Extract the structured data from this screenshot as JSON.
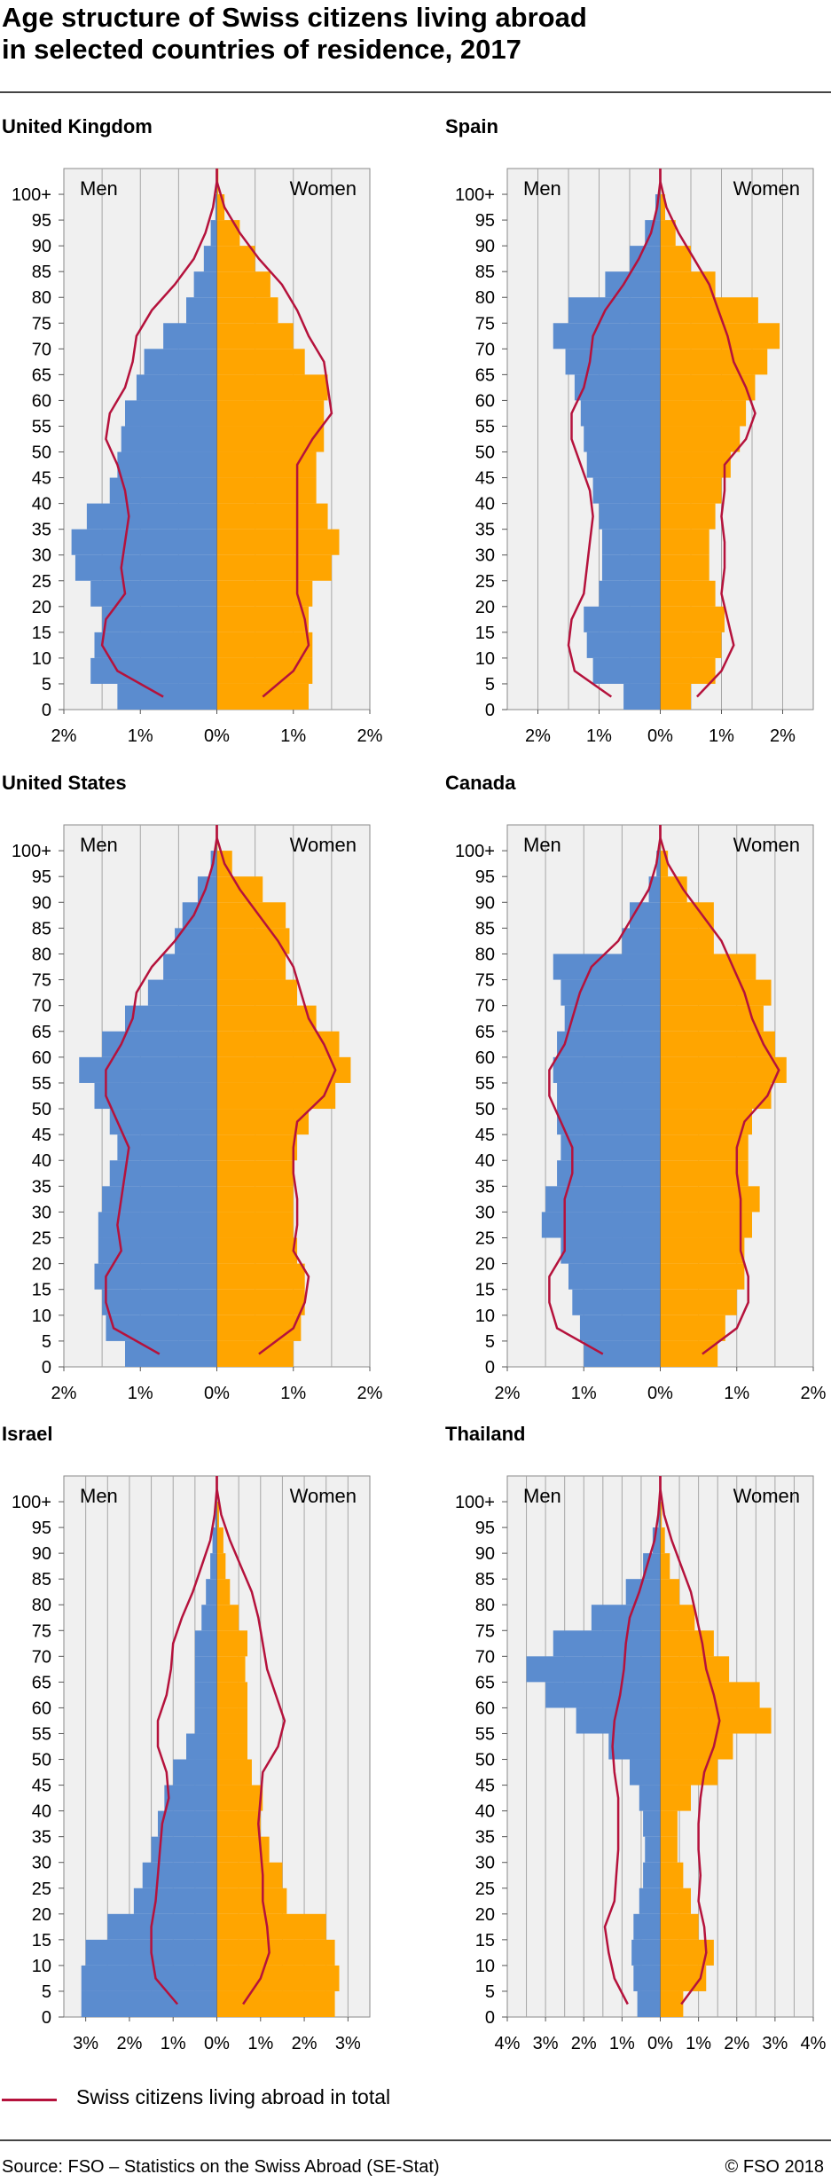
{
  "title_line1": "Age structure of Swiss citizens living abroad",
  "title_line2": "in selected countries of residence, 2017",
  "men_label": "Men",
  "women_label": "Women",
  "legend_label": "Swiss citizens living abroad in total",
  "source": "Source: FSO – Statistics on the Swiss Abroad (SE-Stat)",
  "copyright": "© FSO 2018",
  "colors": {
    "men": "#5b8ccf",
    "women": "#ffa500",
    "total_line": "#b5123c",
    "plot_bg": "#f0f0f0",
    "grid": "#a6a6a6"
  },
  "chart_data": [
    {
      "type": "bar",
      "title": "United Kingdom",
      "xmax": 2,
      "xticks": [
        -2,
        -1,
        0,
        1,
        2
      ],
      "xtick_labels": [
        "2%",
        "1%",
        "0%",
        "1%",
        "2%"
      ],
      "age_groups": [
        0,
        5,
        10,
        15,
        20,
        25,
        30,
        35,
        40,
        45,
        50,
        55,
        60,
        65,
        70,
        75,
        80,
        85,
        90,
        95,
        100
      ],
      "age_labels": [
        "0",
        "5",
        "10",
        "15",
        "20",
        "25",
        "30",
        "35",
        "40",
        "45",
        "50",
        "55",
        "60",
        "65",
        "70",
        "75",
        "80",
        "85",
        "90",
        "95",
        "100+"
      ],
      "series": [
        {
          "name": "Men",
          "values": [
            1.3,
            1.65,
            1.6,
            1.5,
            1.65,
            1.85,
            1.9,
            1.7,
            1.4,
            1.3,
            1.25,
            1.2,
            1.05,
            0.95,
            0.7,
            0.4,
            0.3,
            0.17,
            0.08,
            0.02,
            0.0
          ]
        },
        {
          "name": "Women",
          "values": [
            1.2,
            1.25,
            1.25,
            1.2,
            1.25,
            1.5,
            1.6,
            1.45,
            1.3,
            1.3,
            1.4,
            1.4,
            1.45,
            1.15,
            1.0,
            0.8,
            0.7,
            0.5,
            0.3,
            0.1,
            0.02
          ]
        },
        {
          "name": "Swiss citizens living abroad in total",
          "men": [
            0.7,
            1.3,
            1.5,
            1.45,
            1.2,
            1.25,
            1.2,
            1.15,
            1.2,
            1.3,
            1.45,
            1.4,
            1.2,
            1.1,
            1.05,
            0.85,
            0.55,
            0.3,
            0.15,
            0.05,
            0.0
          ],
          "women": [
            0.6,
            1.0,
            1.2,
            1.15,
            1.05,
            1.05,
            1.05,
            1.05,
            1.05,
            1.05,
            1.25,
            1.5,
            1.45,
            1.4,
            1.2,
            1.05,
            0.85,
            0.55,
            0.3,
            0.1,
            0.0
          ]
        }
      ]
    },
    {
      "type": "bar",
      "title": "Spain",
      "xmax": 2.5,
      "xticks": [
        -2,
        -1,
        0,
        1,
        2
      ],
      "xtick_labels": [
        "2%",
        "1%",
        "0%",
        "1%",
        "2%"
      ],
      "age_groups": [
        0,
        5,
        10,
        15,
        20,
        25,
        30,
        35,
        40,
        45,
        50,
        55,
        60,
        65,
        70,
        75,
        80,
        85,
        90,
        95,
        100
      ],
      "age_labels": [
        "0",
        "5",
        "10",
        "15",
        "20",
        "25",
        "30",
        "35",
        "40",
        "45",
        "50",
        "55",
        "60",
        "65",
        "70",
        "75",
        "80",
        "85",
        "90",
        "95",
        "100+"
      ],
      "series": [
        {
          "name": "Men",
          "values": [
            0.6,
            1.1,
            1.2,
            1.25,
            1.0,
            0.95,
            0.95,
            1.0,
            1.1,
            1.2,
            1.25,
            1.3,
            1.4,
            1.55,
            1.75,
            1.5,
            0.9,
            0.5,
            0.25,
            0.08,
            0.01
          ]
        },
        {
          "name": "Women",
          "values": [
            0.5,
            0.9,
            1.0,
            1.05,
            0.9,
            0.8,
            0.8,
            0.9,
            1.0,
            1.15,
            1.3,
            1.4,
            1.55,
            1.75,
            1.95,
            1.6,
            0.9,
            0.5,
            0.25,
            0.08,
            0.01
          ]
        },
        {
          "name": "Swiss citizens living abroad in total",
          "men": [
            0.8,
            1.4,
            1.5,
            1.45,
            1.25,
            1.2,
            1.15,
            1.1,
            1.15,
            1.3,
            1.45,
            1.45,
            1.25,
            1.15,
            1.1,
            0.9,
            0.6,
            0.35,
            0.15,
            0.05,
            0.0
          ],
          "women": [
            0.6,
            1.0,
            1.2,
            1.1,
            1.0,
            1.05,
            1.05,
            1.0,
            1.05,
            1.05,
            1.4,
            1.55,
            1.4,
            1.2,
            1.1,
            0.95,
            0.8,
            0.55,
            0.3,
            0.1,
            0.0
          ]
        }
      ]
    },
    {
      "type": "bar",
      "title": "United States",
      "xmax": 2,
      "xticks": [
        -2,
        -1,
        0,
        1,
        2
      ],
      "xtick_labels": [
        "2%",
        "1%",
        "0%",
        "1%",
        "2%"
      ],
      "age_groups": [
        0,
        5,
        10,
        15,
        20,
        25,
        30,
        35,
        40,
        45,
        50,
        55,
        60,
        65,
        70,
        75,
        80,
        85,
        90,
        95,
        100
      ],
      "age_labels": [
        "0",
        "5",
        "10",
        "15",
        "20",
        "25",
        "30",
        "35",
        "40",
        "45",
        "50",
        "55",
        "60",
        "65",
        "70",
        "75",
        "80",
        "85",
        "90",
        "95",
        "100+"
      ],
      "series": [
        {
          "name": "Men",
          "values": [
            1.2,
            1.45,
            1.5,
            1.6,
            1.55,
            1.55,
            1.5,
            1.4,
            1.3,
            1.4,
            1.6,
            1.8,
            1.5,
            1.2,
            0.9,
            0.7,
            0.55,
            0.45,
            0.25,
            0.08,
            0.01
          ]
        },
        {
          "name": "Women",
          "values": [
            1.0,
            1.1,
            1.15,
            1.15,
            1.05,
            1.0,
            1.0,
            1.0,
            1.05,
            1.2,
            1.55,
            1.75,
            1.6,
            1.3,
            1.05,
            0.9,
            0.95,
            0.9,
            0.6,
            0.2,
            0.01
          ]
        },
        {
          "name": "Swiss citizens living abroad in total",
          "men": [
            0.75,
            1.35,
            1.45,
            1.45,
            1.25,
            1.3,
            1.25,
            1.2,
            1.15,
            1.3,
            1.45,
            1.45,
            1.25,
            1.1,
            1.05,
            0.85,
            0.55,
            0.3,
            0.15,
            0.05,
            0.0
          ],
          "women": [
            0.55,
            1.0,
            1.15,
            1.2,
            1.0,
            1.05,
            1.05,
            1.0,
            1.0,
            1.05,
            1.4,
            1.55,
            1.4,
            1.2,
            1.1,
            1.0,
            0.8,
            0.55,
            0.3,
            0.1,
            0.0
          ]
        }
      ]
    },
    {
      "type": "bar",
      "title": "Canada",
      "xmax": 2,
      "xticks": [
        -2,
        -1,
        0,
        1,
        2
      ],
      "xtick_labels": [
        "2%",
        "1%",
        "0%",
        "1%",
        "2%"
      ],
      "age_groups": [
        0,
        5,
        10,
        15,
        20,
        25,
        30,
        35,
        40,
        45,
        50,
        55,
        60,
        65,
        70,
        75,
        80,
        85,
        90,
        95,
        100
      ],
      "age_labels": [
        "0",
        "5",
        "10",
        "15",
        "20",
        "25",
        "30",
        "35",
        "40",
        "45",
        "50",
        "55",
        "60",
        "65",
        "70",
        "75",
        "80",
        "85",
        "90",
        "95",
        "100+"
      ],
      "series": [
        {
          "name": "Men",
          "values": [
            1.0,
            1.05,
            1.15,
            1.2,
            1.3,
            1.55,
            1.5,
            1.35,
            1.3,
            1.35,
            1.35,
            1.4,
            1.35,
            1.25,
            1.3,
            1.4,
            0.5,
            0.4,
            0.15,
            0.05,
            0.01
          ]
        },
        {
          "name": "Women",
          "values": [
            0.75,
            0.85,
            1.0,
            1.1,
            1.1,
            1.2,
            1.3,
            1.15,
            1.15,
            1.2,
            1.45,
            1.65,
            1.5,
            1.35,
            1.45,
            1.25,
            0.7,
            0.7,
            0.35,
            0.1,
            0.01
          ]
        },
        {
          "name": "Swiss citizens living abroad in total",
          "men": [
            0.75,
            1.35,
            1.45,
            1.45,
            1.25,
            1.25,
            1.25,
            1.15,
            1.15,
            1.3,
            1.45,
            1.45,
            1.25,
            1.15,
            1.05,
            0.9,
            0.55,
            0.35,
            0.15,
            0.05,
            0.0
          ],
          "women": [
            0.55,
            1.0,
            1.15,
            1.15,
            1.05,
            1.05,
            1.05,
            1.0,
            1.0,
            1.1,
            1.4,
            1.55,
            1.35,
            1.2,
            1.1,
            0.95,
            0.8,
            0.55,
            0.3,
            0.1,
            0.0
          ]
        }
      ]
    },
    {
      "type": "bar",
      "title": "Israel",
      "xmax": 3.5,
      "xticks": [
        -3,
        -2,
        -1,
        0,
        1,
        2,
        3
      ],
      "xtick_labels": [
        "3%",
        "2%",
        "1%",
        "0%",
        "1%",
        "2%",
        "3%"
      ],
      "age_groups": [
        0,
        5,
        10,
        15,
        20,
        25,
        30,
        35,
        40,
        45,
        50,
        55,
        60,
        65,
        70,
        75,
        80,
        85,
        90,
        95,
        100
      ],
      "age_labels": [
        "0",
        "5",
        "10",
        "15",
        "20",
        "25",
        "30",
        "35",
        "40",
        "45",
        "50",
        "55",
        "60",
        "65",
        "70",
        "75",
        "80",
        "85",
        "90",
        "95",
        "100+"
      ],
      "series": [
        {
          "name": "Men",
          "values": [
            3.1,
            3.1,
            3.0,
            2.5,
            1.9,
            1.7,
            1.5,
            1.35,
            1.2,
            1.0,
            0.7,
            0.5,
            0.5,
            0.5,
            0.5,
            0.35,
            0.25,
            0.15,
            0.1,
            0.04,
            0.01
          ]
        },
        {
          "name": "Women",
          "values": [
            2.7,
            2.8,
            2.7,
            2.5,
            1.6,
            1.5,
            1.2,
            1.0,
            1.05,
            0.8,
            0.7,
            0.7,
            0.7,
            0.65,
            0.7,
            0.5,
            0.3,
            0.2,
            0.15,
            0.05,
            0.01
          ]
        },
        {
          "name": "Swiss citizens living abroad in total",
          "men": [
            0.9,
            1.4,
            1.5,
            1.5,
            1.4,
            1.35,
            1.3,
            1.25,
            1.1,
            1.15,
            1.35,
            1.35,
            1.15,
            1.05,
            1.0,
            0.8,
            0.55,
            0.35,
            0.15,
            0.05,
            0.0
          ],
          "women": [
            0.6,
            1.0,
            1.2,
            1.15,
            1.05,
            1.05,
            1.0,
            0.95,
            1.0,
            1.05,
            1.4,
            1.55,
            1.35,
            1.15,
            1.05,
            0.95,
            0.8,
            0.55,
            0.3,
            0.1,
            0.0
          ]
        }
      ]
    },
    {
      "type": "bar",
      "title": "Thailand",
      "xmax": 4,
      "xticks": [
        -4,
        -3,
        -2,
        -1,
        0,
        1,
        2,
        3,
        4
      ],
      "xtick_labels": [
        "4%",
        "3%",
        "2%",
        "1%",
        "0%",
        "1%",
        "2%",
        "3%",
        "4%"
      ],
      "age_groups": [
        0,
        5,
        10,
        15,
        20,
        25,
        30,
        35,
        40,
        45,
        50,
        55,
        60,
        65,
        70,
        75,
        80,
        85,
        90,
        95,
        100
      ],
      "age_labels": [
        "0",
        "5",
        "10",
        "15",
        "20",
        "25",
        "30",
        "35",
        "40",
        "45",
        "50",
        "55",
        "60",
        "65",
        "70",
        "75",
        "80",
        "85",
        "90",
        "95",
        "100+"
      ],
      "series": [
        {
          "name": "Men",
          "values": [
            0.6,
            0.7,
            0.75,
            0.7,
            0.55,
            0.45,
            0.4,
            0.45,
            0.55,
            0.8,
            1.35,
            2.2,
            3.0,
            3.5,
            2.8,
            1.8,
            0.9,
            0.45,
            0.2,
            0.05,
            0.01
          ]
        },
        {
          "name": "Women",
          "values": [
            0.6,
            1.2,
            1.4,
            1.0,
            0.8,
            0.6,
            0.45,
            0.45,
            0.8,
            1.5,
            1.9,
            2.9,
            2.6,
            1.8,
            1.4,
            0.9,
            0.5,
            0.25,
            0.12,
            0.04,
            0.01
          ]
        },
        {
          "name": "Swiss citizens living abroad in total",
          "men": [
            0.85,
            1.2,
            1.35,
            1.45,
            1.2,
            1.15,
            1.1,
            1.1,
            1.1,
            1.2,
            1.25,
            1.2,
            1.05,
            0.95,
            0.9,
            0.8,
            0.55,
            0.35,
            0.15,
            0.05,
            0.0
          ],
          "women": [
            0.55,
            1.05,
            1.2,
            1.15,
            1.0,
            1.05,
            1.0,
            1.0,
            1.05,
            1.15,
            1.4,
            1.55,
            1.4,
            1.2,
            1.1,
            0.95,
            0.8,
            0.55,
            0.3,
            0.1,
            0.0
          ]
        }
      ]
    }
  ]
}
